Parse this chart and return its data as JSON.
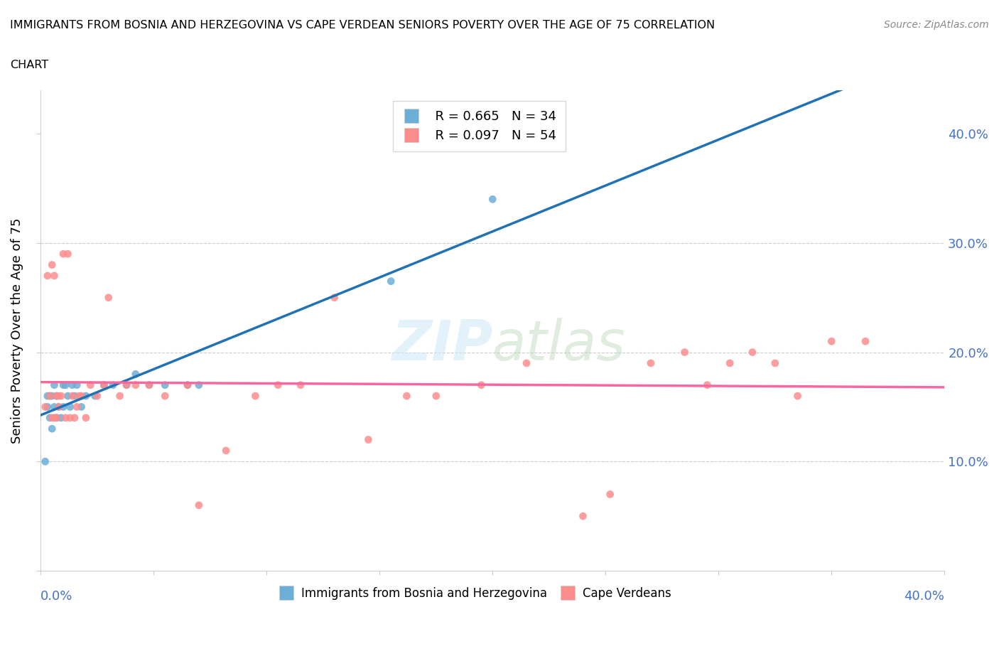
{
  "title_line1": "IMMIGRANTS FROM BOSNIA AND HERZEGOVINA VS CAPE VERDEAN SENIORS POVERTY OVER THE AGE OF 75 CORRELATION",
  "title_line2": "CHART",
  "source_text": "Source: ZipAtlas.com",
  "ylabel": "Seniors Poverty Over the Age of 75",
  "xlim": [
    0.0,
    0.4
  ],
  "ylim": [
    0.0,
    0.44
  ],
  "watermark": "ZIPatlas",
  "legend_bosnia_R": "R = 0.665",
  "legend_bosnia_N": "N = 34",
  "legend_cape_R": "R = 0.097",
  "legend_cape_N": "N = 54",
  "bosnia_color": "#6baed6",
  "cape_color": "#fc8d8d",
  "bosnia_line_color": "#2171b5",
  "cape_line_color": "#f768a1",
  "bosnia_x": [
    0.002,
    0.003,
    0.003,
    0.004,
    0.004,
    0.005,
    0.005,
    0.006,
    0.006,
    0.007,
    0.007,
    0.008,
    0.009,
    0.01,
    0.01,
    0.011,
    0.012,
    0.013,
    0.014,
    0.015,
    0.016,
    0.018,
    0.02,
    0.024,
    0.028,
    0.032,
    0.038,
    0.042,
    0.048,
    0.055,
    0.065,
    0.07,
    0.155,
    0.2
  ],
  "bosnia_y": [
    0.1,
    0.15,
    0.16,
    0.14,
    0.16,
    0.13,
    0.16,
    0.15,
    0.17,
    0.14,
    0.16,
    0.15,
    0.14,
    0.17,
    0.15,
    0.17,
    0.16,
    0.15,
    0.17,
    0.16,
    0.17,
    0.15,
    0.16,
    0.16,
    0.17,
    0.17,
    0.17,
    0.18,
    0.17,
    0.17,
    0.17,
    0.17,
    0.265,
    0.34
  ],
  "cape_x": [
    0.002,
    0.003,
    0.004,
    0.005,
    0.005,
    0.006,
    0.006,
    0.007,
    0.007,
    0.008,
    0.008,
    0.009,
    0.01,
    0.011,
    0.012,
    0.013,
    0.014,
    0.015,
    0.016,
    0.017,
    0.018,
    0.02,
    0.022,
    0.025,
    0.028,
    0.03,
    0.035,
    0.038,
    0.042,
    0.048,
    0.055,
    0.065,
    0.07,
    0.082,
    0.095,
    0.105,
    0.115,
    0.13,
    0.145,
    0.162,
    0.175,
    0.195,
    0.215,
    0.24,
    0.252,
    0.27,
    0.285,
    0.295,
    0.305,
    0.315,
    0.325,
    0.335,
    0.35,
    0.365
  ],
  "cape_y": [
    0.15,
    0.27,
    0.16,
    0.28,
    0.14,
    0.27,
    0.14,
    0.14,
    0.16,
    0.16,
    0.15,
    0.16,
    0.29,
    0.14,
    0.29,
    0.14,
    0.16,
    0.14,
    0.15,
    0.16,
    0.16,
    0.14,
    0.17,
    0.16,
    0.17,
    0.25,
    0.16,
    0.17,
    0.17,
    0.17,
    0.16,
    0.17,
    0.06,
    0.11,
    0.16,
    0.17,
    0.17,
    0.25,
    0.12,
    0.16,
    0.16,
    0.17,
    0.19,
    0.05,
    0.07,
    0.19,
    0.2,
    0.17,
    0.19,
    0.2,
    0.19,
    0.16,
    0.21,
    0.21
  ]
}
